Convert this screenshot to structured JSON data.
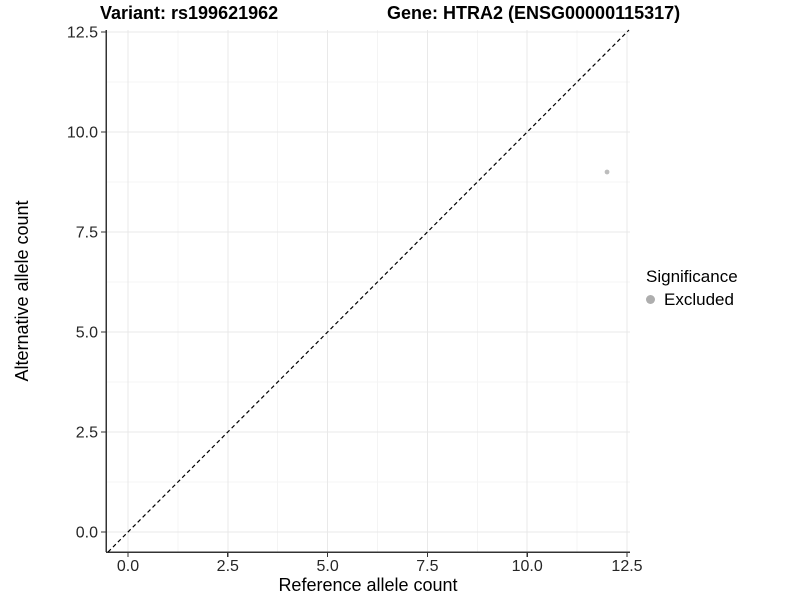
{
  "chart_data": {
    "type": "scatter",
    "title_left": "Variant: rs199621962",
    "title_right": "Gene: HTRA2 (ENSG00000115317)",
    "xlabel": "Reference allele count",
    "ylabel": "Alternative allele count",
    "xlim": [
      -0.551,
      12.575
    ],
    "ylim": [
      -0.5,
      12.55
    ],
    "xticks": [
      0,
      2.5,
      5,
      7.5,
      10,
      12.5
    ],
    "yticks": [
      0,
      2.5,
      5,
      7.5,
      10,
      12.5
    ],
    "xtick_labels": [
      "0.0",
      "2.5",
      "5.0",
      "7.5",
      "10.0",
      "12.5"
    ],
    "ytick_labels": [
      "0.0",
      "2.5",
      "5.0",
      "7.5",
      "10.0",
      "12.5"
    ],
    "grid": "major and minor, light gray, white panel background",
    "identity_line": {
      "equation": "y = x",
      "style": "dashed",
      "color": "#000000"
    },
    "series": [
      {
        "name": "Excluded",
        "color": "#bdbdbd",
        "points": [
          {
            "x": 12,
            "y": 9
          }
        ]
      }
    ],
    "legend": {
      "position": "right",
      "title": "Significance",
      "items": [
        {
          "label": "Excluded",
          "color": "#aeaeae",
          "marker": "circle"
        }
      ]
    }
  },
  "colors": {
    "background": "#ffffff",
    "axis_line": "#333333",
    "tick_label": "#262626",
    "grid_major": "#e9e9e9",
    "grid_minor": "#f4f4f4",
    "title": "#000000"
  }
}
